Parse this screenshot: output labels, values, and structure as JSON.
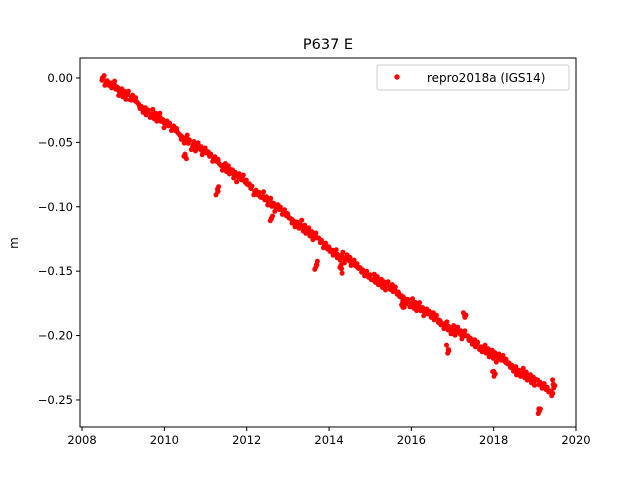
{
  "chart_data": {
    "type": "scatter",
    "title": "P637 E",
    "xlabel": "",
    "ylabel": "m",
    "xlim": [
      2007.95,
      2020.0
    ],
    "ylim": [
      -0.271,
      0.0155
    ],
    "xticks": [
      2008,
      2010,
      2012,
      2014,
      2016,
      2018,
      2020
    ],
    "xtick_labels": [
      "2008",
      "2010",
      "2012",
      "2014",
      "2016",
      "2018",
      "2020"
    ],
    "yticks": [
      0.0,
      -0.05,
      -0.1,
      -0.15,
      -0.2,
      -0.25
    ],
    "ytick_labels": [
      "0.00",
      "−0.05",
      "−0.10",
      "−0.15",
      "−0.20",
      "−0.25"
    ],
    "grid": false,
    "legend_placement": "top-right",
    "series": [
      {
        "name": "repro2018a (IGS14)",
        "color": "#ff0000",
        "marker": "dot",
        "points": [
          [
            2008.5,
            0.0
          ],
          [
            2008.6,
            -0.003
          ],
          [
            2008.7,
            -0.004
          ],
          [
            2008.8,
            -0.006
          ],
          [
            2008.9,
            -0.01
          ],
          [
            2009.0,
            -0.012
          ],
          [
            2009.1,
            -0.013
          ],
          [
            2009.2,
            -0.017
          ],
          [
            2009.3,
            -0.018
          ],
          [
            2009.4,
            -0.022
          ],
          [
            2009.5,
            -0.024
          ],
          [
            2009.6,
            -0.025
          ],
          [
            2009.7,
            -0.028
          ],
          [
            2009.8,
            -0.03
          ],
          [
            2009.9,
            -0.031
          ],
          [
            2010.0,
            -0.035
          ],
          [
            2010.1,
            -0.037
          ],
          [
            2010.2,
            -0.04
          ],
          [
            2010.3,
            -0.041
          ],
          [
            2010.4,
            -0.045
          ],
          [
            2010.5,
            -0.047
          ],
          [
            2010.6,
            -0.048
          ],
          [
            2010.7,
            -0.052
          ],
          [
            2010.8,
            -0.054
          ],
          [
            2010.9,
            -0.056
          ],
          [
            2011.0,
            -0.058
          ],
          [
            2011.1,
            -0.06
          ],
          [
            2011.2,
            -0.063
          ],
          [
            2011.3,
            -0.064
          ],
          [
            2011.4,
            -0.068
          ],
          [
            2011.5,
            -0.07
          ],
          [
            2011.6,
            -0.071
          ],
          [
            2011.7,
            -0.075
          ],
          [
            2011.8,
            -0.077
          ],
          [
            2011.9,
            -0.079
          ],
          [
            2012.0,
            -0.082
          ],
          [
            2012.1,
            -0.084
          ],
          [
            2012.2,
            -0.088
          ],
          [
            2012.3,
            -0.089
          ],
          [
            2012.4,
            -0.092
          ],
          [
            2012.5,
            -0.095
          ],
          [
            2012.6,
            -0.097
          ],
          [
            2012.7,
            -0.1
          ],
          [
            2012.8,
            -0.102
          ],
          [
            2012.9,
            -0.105
          ],
          [
            2013.0,
            -0.107
          ],
          [
            2013.1,
            -0.11
          ],
          [
            2013.2,
            -0.112
          ],
          [
            2013.3,
            -0.114
          ],
          [
            2013.4,
            -0.117
          ],
          [
            2013.5,
            -0.12
          ],
          [
            2013.6,
            -0.122
          ],
          [
            2013.7,
            -0.124
          ],
          [
            2013.8,
            -0.127
          ],
          [
            2013.9,
            -0.13
          ],
          [
            2014.0,
            -0.132
          ],
          [
            2014.1,
            -0.134
          ],
          [
            2014.2,
            -0.137
          ],
          [
            2014.3,
            -0.138
          ],
          [
            2014.4,
            -0.141
          ],
          [
            2014.5,
            -0.142
          ],
          [
            2014.6,
            -0.145
          ],
          [
            2014.7,
            -0.147
          ],
          [
            2014.8,
            -0.149
          ],
          [
            2014.9,
            -0.151
          ],
          [
            2015.0,
            -0.153
          ],
          [
            2015.1,
            -0.156
          ],
          [
            2015.2,
            -0.157
          ],
          [
            2015.3,
            -0.16
          ],
          [
            2015.4,
            -0.161
          ],
          [
            2015.5,
            -0.164
          ],
          [
            2015.6,
            -0.165
          ],
          [
            2015.7,
            -0.168
          ],
          [
            2015.8,
            -0.17
          ],
          [
            2015.9,
            -0.172
          ],
          [
            2016.0,
            -0.175
          ],
          [
            2016.1,
            -0.177
          ],
          [
            2016.2,
            -0.178
          ],
          [
            2016.3,
            -0.181
          ],
          [
            2016.4,
            -0.183
          ],
          [
            2016.5,
            -0.185
          ],
          [
            2016.6,
            -0.186
          ],
          [
            2016.7,
            -0.189
          ],
          [
            2016.8,
            -0.191
          ],
          [
            2016.9,
            -0.193
          ],
          [
            2017.0,
            -0.195
          ],
          [
            2017.1,
            -0.197
          ],
          [
            2017.2,
            -0.199
          ],
          [
            2017.3,
            -0.2
          ],
          [
            2017.4,
            -0.203
          ],
          [
            2017.5,
            -0.205
          ],
          [
            2017.6,
            -0.206
          ],
          [
            2017.7,
            -0.209
          ],
          [
            2017.8,
            -0.211
          ],
          [
            2017.9,
            -0.213
          ],
          [
            2018.0,
            -0.215
          ],
          [
            2018.1,
            -0.217
          ],
          [
            2018.2,
            -0.219
          ],
          [
            2018.3,
            -0.221
          ],
          [
            2018.4,
            -0.223
          ],
          [
            2018.5,
            -0.225
          ],
          [
            2018.6,
            -0.227
          ],
          [
            2018.7,
            -0.229
          ],
          [
            2018.8,
            -0.231
          ],
          [
            2018.9,
            -0.234
          ],
          [
            2019.0,
            -0.235
          ],
          [
            2019.1,
            -0.238
          ],
          [
            2019.2,
            -0.24
          ],
          [
            2019.3,
            -0.242
          ],
          [
            2019.4,
            -0.244
          ],
          [
            2019.1,
            -0.257
          ],
          [
            2016.9,
            -0.211
          ],
          [
            2013.7,
            -0.145
          ],
          [
            2011.3,
            -0.088
          ],
          [
            2014.3,
            -0.148
          ],
          [
            2015.8,
            -0.178
          ],
          [
            2017.3,
            -0.185
          ],
          [
            2012.6,
            -0.109
          ],
          [
            2010.5,
            -0.06
          ],
          [
            2018.0,
            -0.228
          ],
          [
            2019.45,
            -0.238
          ]
        ]
      }
    ]
  }
}
